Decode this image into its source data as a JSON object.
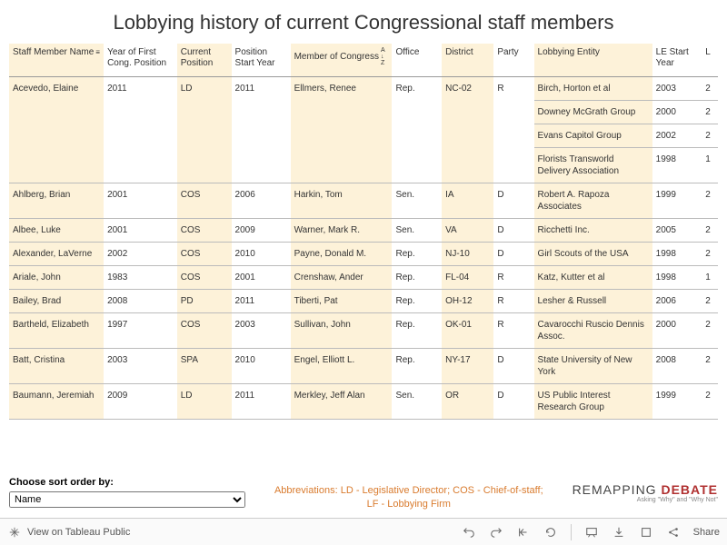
{
  "title": "Lobbying history of current Congressional staff members",
  "headers": {
    "c1": "Staff Member Name",
    "c2": "Year of First Cong. Position",
    "c3": "Current Position",
    "c4": "Position Start Year",
    "c5": "Member of Congress",
    "c6": "Office",
    "c7": "District",
    "c8": "Party",
    "c9": "Lobbying Entity",
    "c10": "LE Start Year",
    "c11": "L"
  },
  "sort_indicators": {
    "c1_glyph": "≡",
    "c5_glyph": "A↓Z"
  },
  "rows": [
    {
      "c1": "Acevedo, Elaine",
      "c2": "2011",
      "c3": "LD",
      "c4": "2011",
      "c5": "Ellmers, Renee",
      "c6": "Rep.",
      "c7": "NC-02",
      "c8": "R",
      "entities": [
        {
          "c9": "Birch, Horton et al",
          "c10": "2003",
          "c11": "2"
        },
        {
          "c9": "Downey McGrath Group",
          "c10": "2000",
          "c11": "2"
        },
        {
          "c9": "Evans Capitol Group",
          "c10": "2002",
          "c11": "2"
        },
        {
          "c9": "Florists Transworld Delivery Association",
          "c10": "1998",
          "c11": "1"
        }
      ]
    },
    {
      "c1": "Ahlberg, Brian",
      "c2": "2001",
      "c3": "COS",
      "c4": "2006",
      "c5": "Harkin, Tom",
      "c6": "Sen.",
      "c7": "IA",
      "c8": "D",
      "entities": [
        {
          "c9": "Robert A. Rapoza Associates",
          "c10": "1999",
          "c11": "2"
        }
      ]
    },
    {
      "c1": "Albee, Luke",
      "c2": "2001",
      "c3": "COS",
      "c4": "2009",
      "c5": "Warner, Mark R.",
      "c6": "Sen.",
      "c7": "VA",
      "c8": "D",
      "entities": [
        {
          "c9": "Ricchetti Inc.",
          "c10": "2005",
          "c11": "2"
        }
      ]
    },
    {
      "c1": "Alexander, LaVerne",
      "c2": "2002",
      "c3": "COS",
      "c4": "2010",
      "c5": "Payne, Donald M.",
      "c6": "Rep.",
      "c7": "NJ-10",
      "c8": "D",
      "entities": [
        {
          "c9": "Girl Scouts of the USA",
          "c10": "1998",
          "c11": "2"
        }
      ]
    },
    {
      "c1": "Ariale, John",
      "c2": "1983",
      "c3": "COS",
      "c4": "2001",
      "c5": "Crenshaw, Ander",
      "c6": "Rep.",
      "c7": "FL-04",
      "c8": "R",
      "entities": [
        {
          "c9": "Katz, Kutter et al",
          "c10": "1998",
          "c11": "1"
        }
      ]
    },
    {
      "c1": "Bailey, Brad",
      "c2": "2008",
      "c3": "PD",
      "c4": "2011",
      "c5": "Tiberti, Pat",
      "c6": "Rep.",
      "c7": "OH-12",
      "c8": "R",
      "entities": [
        {
          "c9": "Lesher & Russell",
          "c10": "2006",
          "c11": "2"
        }
      ]
    },
    {
      "c1": "Bartheld, Elizabeth",
      "c2": "1997",
      "c3": "COS",
      "c4": "2003",
      "c5": "Sullivan, John",
      "c6": "Rep.",
      "c7": "OK-01",
      "c8": "R",
      "entities": [
        {
          "c9": "Cavarocchi Ruscio Dennis Assoc.",
          "c10": "2000",
          "c11": "2"
        }
      ]
    },
    {
      "c1": "Batt, Cristina",
      "c2": "2003",
      "c3": "SPA",
      "c4": "2010",
      "c5": "Engel, Elliott L.",
      "c6": "Rep.",
      "c7": "NY-17",
      "c8": "D",
      "entities": [
        {
          "c9": "State University of New York",
          "c10": "2008",
          "c11": "2"
        }
      ]
    },
    {
      "c1": "Baumann, Jeremiah",
      "c2": "2009",
      "c3": "LD",
      "c4": "2011",
      "c5": "Merkley, Jeff Alan",
      "c6": "Sen.",
      "c7": "OR",
      "c8": "D",
      "entities": [
        {
          "c9": "US Public Interest Research Group",
          "c10": "1999",
          "c11": "2"
        }
      ]
    }
  ],
  "sort_label": "Choose sort order by:",
  "sort_value": "Name",
  "abbrev_line1": "Abbreviations: LD - Legislative Director; COS - Chief-of-staff;",
  "abbrev_line2": "LF - Lobbying Firm",
  "logo": {
    "rem": "REMAPPING",
    "deb": " DEBATE",
    "tag": "Asking \"Why\" and \"Why Not\""
  },
  "toolbar": {
    "view": "View on Tableau Public",
    "share": "Share"
  },
  "colors": {
    "stripe": "#fdf2d9",
    "abbrev": "#d97b2e"
  }
}
